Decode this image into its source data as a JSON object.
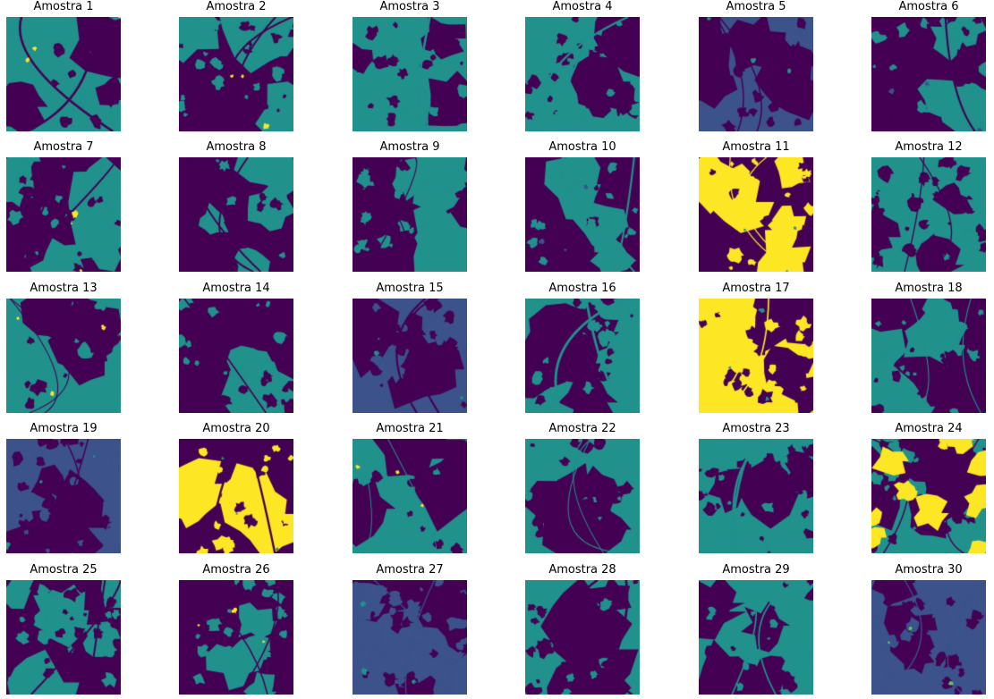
{
  "figure": {
    "panels": [
      {
        "title": "Amostra 1"
      },
      {
        "title": "Amostra 2"
      },
      {
        "title": "Amostra 3"
      },
      {
        "title": "Amostra 4"
      },
      {
        "title": "Amostra 5"
      },
      {
        "title": "Amostra 6"
      },
      {
        "title": "Amostra 7"
      },
      {
        "title": "Amostra 8"
      },
      {
        "title": "Amostra 9"
      },
      {
        "title": "Amostra 10"
      },
      {
        "title": "Amostra 11"
      },
      {
        "title": "Amostra 12"
      },
      {
        "title": "Amostra 13"
      },
      {
        "title": "Amostra 14"
      },
      {
        "title": "Amostra 15"
      },
      {
        "title": "Amostra 16"
      },
      {
        "title": "Amostra 17"
      },
      {
        "title": "Amostra 18"
      },
      {
        "title": "Amostra 19"
      },
      {
        "title": "Amostra 20"
      },
      {
        "title": "Amostra 21"
      },
      {
        "title": "Amostra 22"
      },
      {
        "title": "Amostra 23"
      },
      {
        "title": "Amostra 24"
      },
      {
        "title": "Amostra 25"
      },
      {
        "title": "Amostra 26"
      },
      {
        "title": "Amostra 27"
      },
      {
        "title": "Amostra 28"
      },
      {
        "title": "Amostra 29"
      },
      {
        "title": "Amostra 30"
      }
    ],
    "grid": {
      "rows": 5,
      "cols": 6
    },
    "colormap": [
      "#440154",
      "#3b528b",
      "#21918c",
      "#5ec962",
      "#fde725"
    ]
  }
}
